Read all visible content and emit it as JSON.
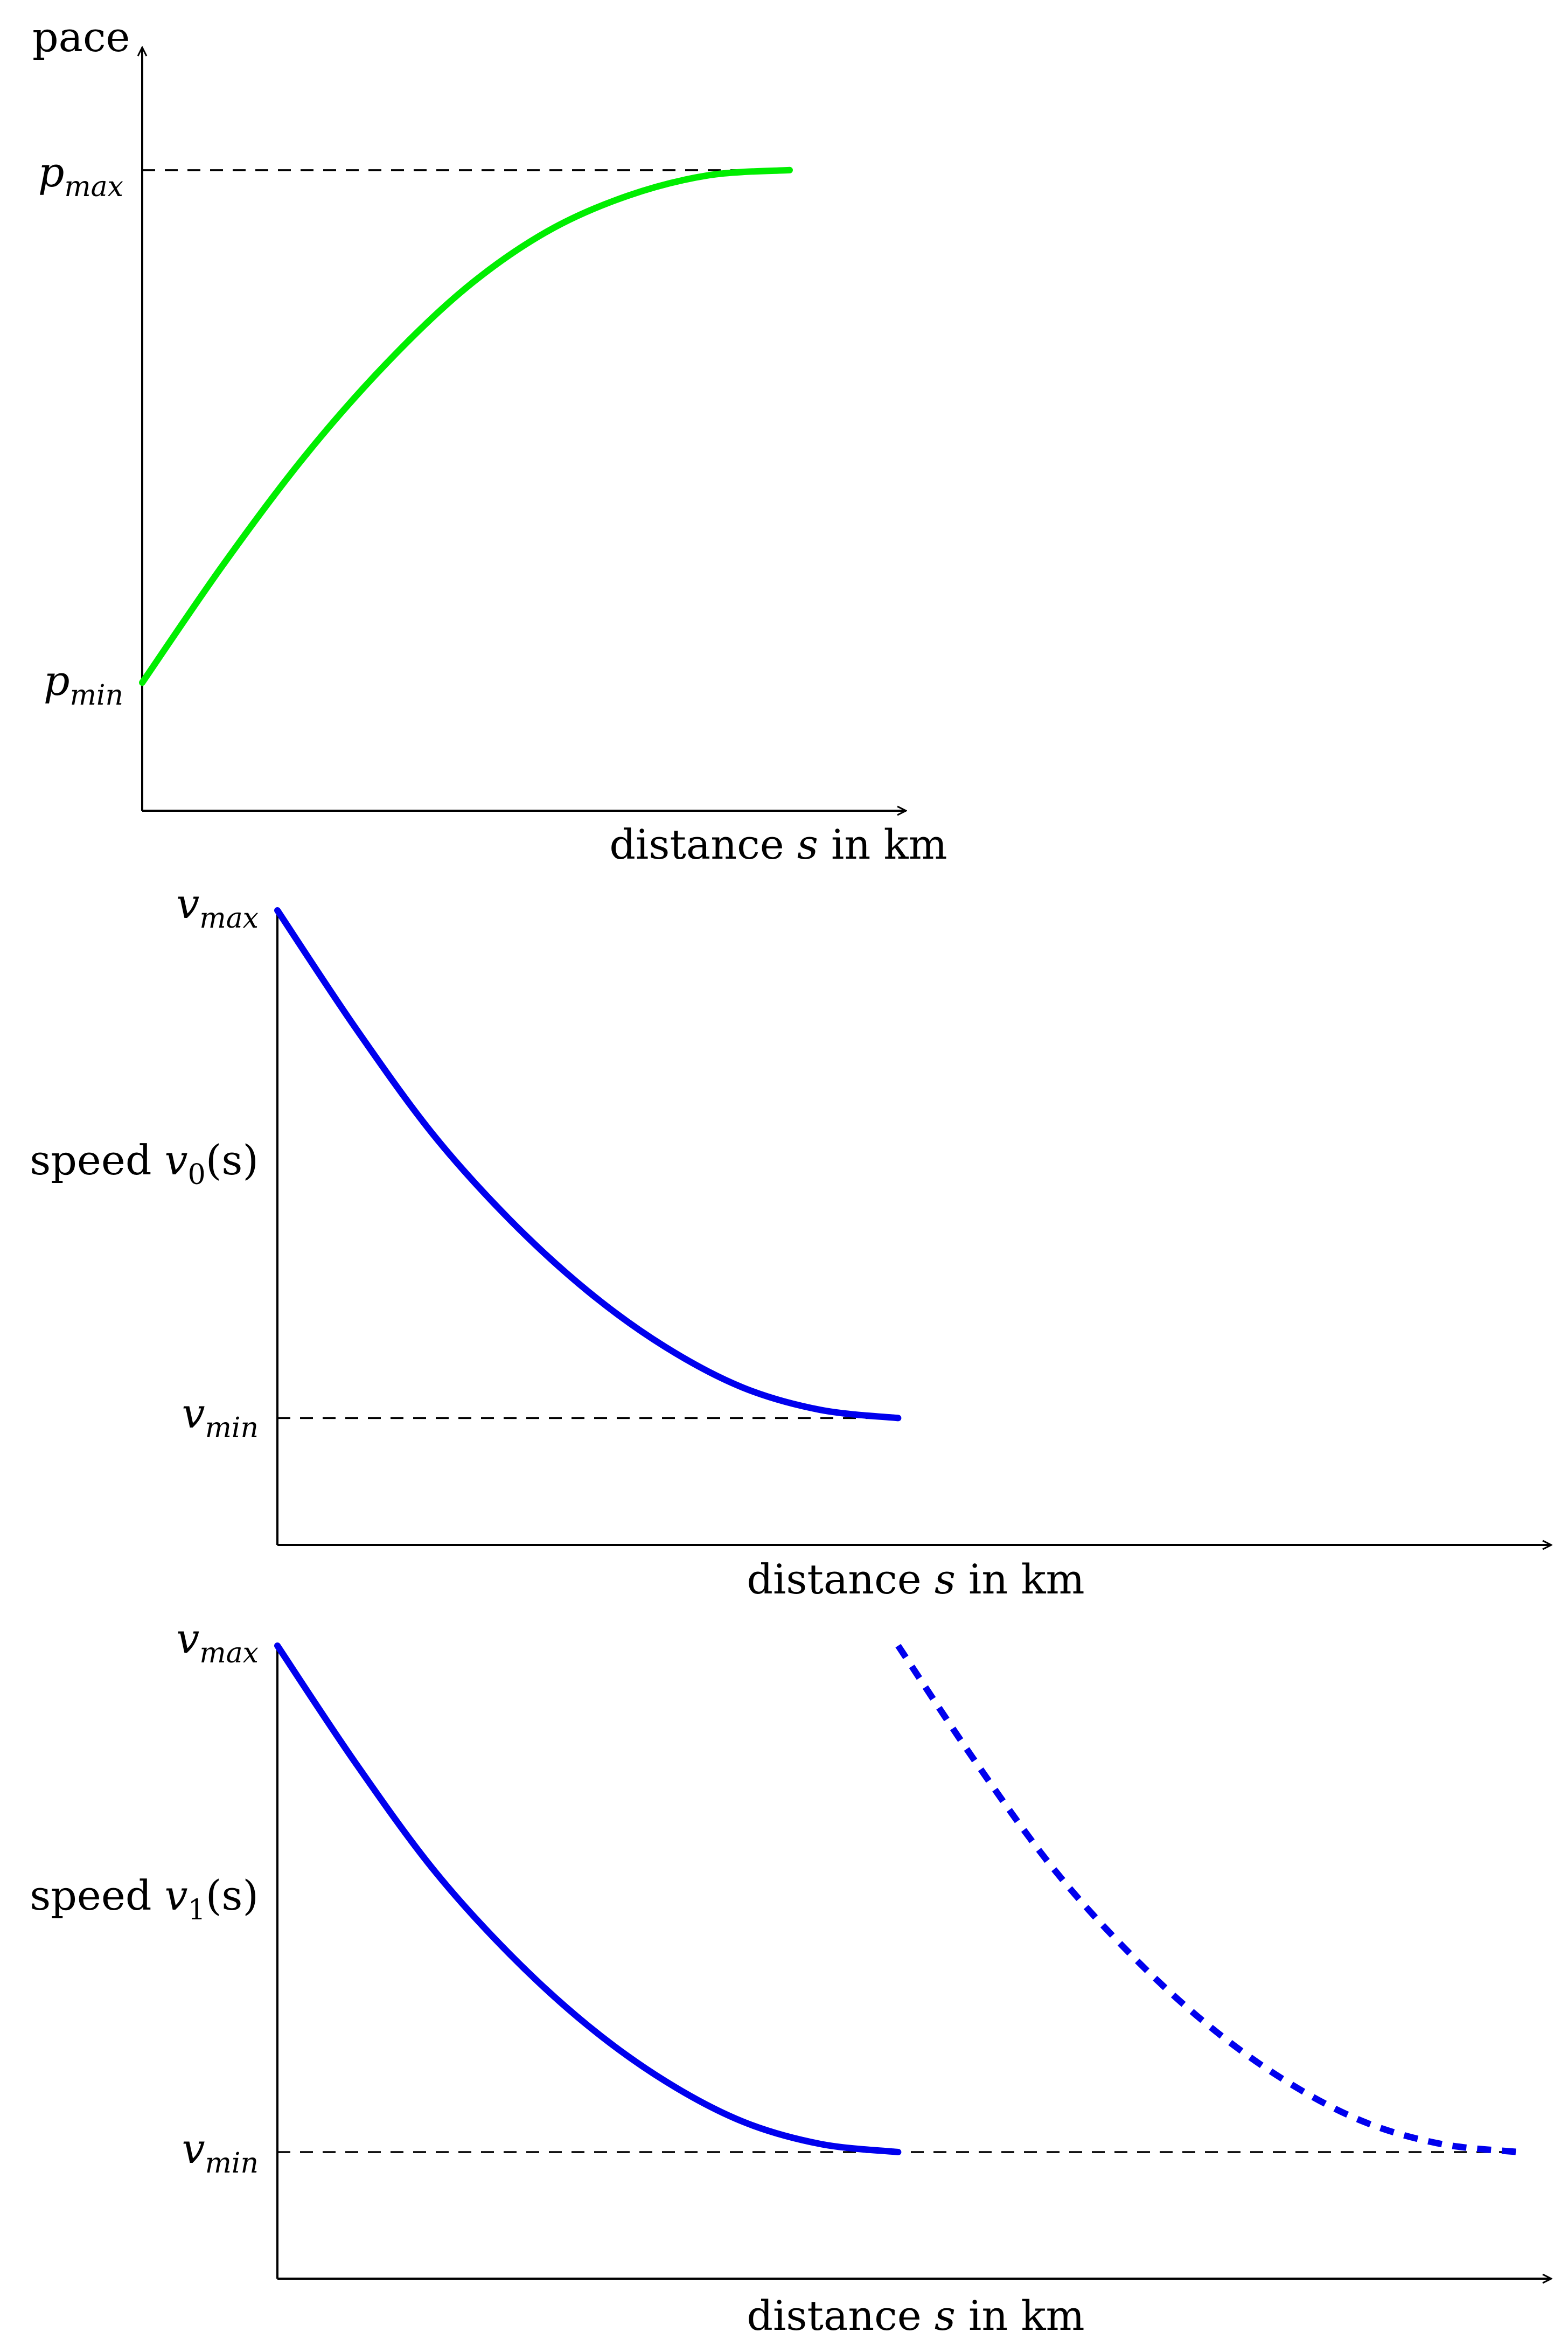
{
  "colors": {
    "pace_curve": "#00ee00",
    "speed_curve": "#0000ee",
    "axis": "#000000",
    "reference_line": "#000000"
  },
  "chart_data": [
    {
      "type": "line",
      "ylabel": "pace",
      "xlabel": {
        "prefix": "distance ",
        "var": "s",
        "suffix": " in km"
      },
      "y_ticks": [
        {
          "base": "p",
          "sub": "max",
          "value": 1
        },
        {
          "base": "p",
          "sub": "min",
          "value": 0
        }
      ],
      "xlim": [
        0,
        3
      ],
      "ylim": [
        -0.25,
        1.25
      ],
      "reference_lines": [
        {
          "y": 1,
          "x_from": 0,
          "x_to": 2,
          "style": "dashed"
        }
      ],
      "series": [
        {
          "style": "solid",
          "color": "#00ee00",
          "x": [
            0,
            0.25,
            0.5,
            0.75,
            1.0,
            1.25,
            1.5,
            1.75,
            2.0
          ],
          "y": [
            0,
            0.23,
            0.44,
            0.62,
            0.77,
            0.88,
            0.95,
            0.99,
            1.0
          ]
        }
      ]
    },
    {
      "type": "line",
      "ylabel": {
        "prefix": "speed ",
        "base": "v",
        "sub": "0",
        "arg": "(s)"
      },
      "xlabel": {
        "prefix": "distance ",
        "var": "s",
        "suffix": " in km"
      },
      "y_ticks": [
        {
          "base": "v",
          "sub": "max",
          "value": 1
        },
        {
          "base": "v",
          "sub": "min",
          "value": 0
        }
      ],
      "xlim": [
        0,
        5
      ],
      "ylim": [
        -0.25,
        1.0
      ],
      "reference_lines": [
        {
          "y": 0,
          "x_from": 0,
          "x_to": 2,
          "style": "dashed"
        }
      ],
      "series": [
        {
          "style": "solid",
          "color": "#0000ee",
          "x": [
            0,
            0.25,
            0.5,
            0.75,
            1.0,
            1.25,
            1.5,
            1.75,
            2.0
          ],
          "y": [
            1.0,
            0.77,
            0.56,
            0.39,
            0.25,
            0.14,
            0.06,
            0.016,
            0
          ]
        }
      ]
    },
    {
      "type": "line",
      "ylabel": {
        "prefix": "speed ",
        "base": "v",
        "sub": "1",
        "arg": "(s)"
      },
      "xlabel": {
        "prefix": "distance ",
        "var": "s",
        "suffix": " in km"
      },
      "y_ticks": [
        {
          "base": "v",
          "sub": "max",
          "value": 1
        },
        {
          "base": "v",
          "sub": "min",
          "value": 0
        }
      ],
      "xlim": [
        0,
        5
      ],
      "ylim": [
        -0.25,
        1.0
      ],
      "reference_lines": [
        {
          "y": 0,
          "x_from": 0,
          "x_to": 4,
          "style": "dashed"
        }
      ],
      "series": [
        {
          "style": "solid",
          "color": "#0000ee",
          "x": [
            0,
            0.25,
            0.5,
            0.75,
            1.0,
            1.25,
            1.5,
            1.75,
            2.0
          ],
          "y": [
            1.0,
            0.77,
            0.56,
            0.39,
            0.25,
            0.14,
            0.06,
            0.016,
            0
          ]
        },
        {
          "style": "dashed",
          "color": "#0000ee",
          "x": [
            2.0,
            2.25,
            2.5,
            2.75,
            3.0,
            3.25,
            3.5,
            3.75,
            4.0
          ],
          "y": [
            1.0,
            0.77,
            0.56,
            0.39,
            0.25,
            0.14,
            0.06,
            0.016,
            0
          ]
        }
      ]
    }
  ]
}
